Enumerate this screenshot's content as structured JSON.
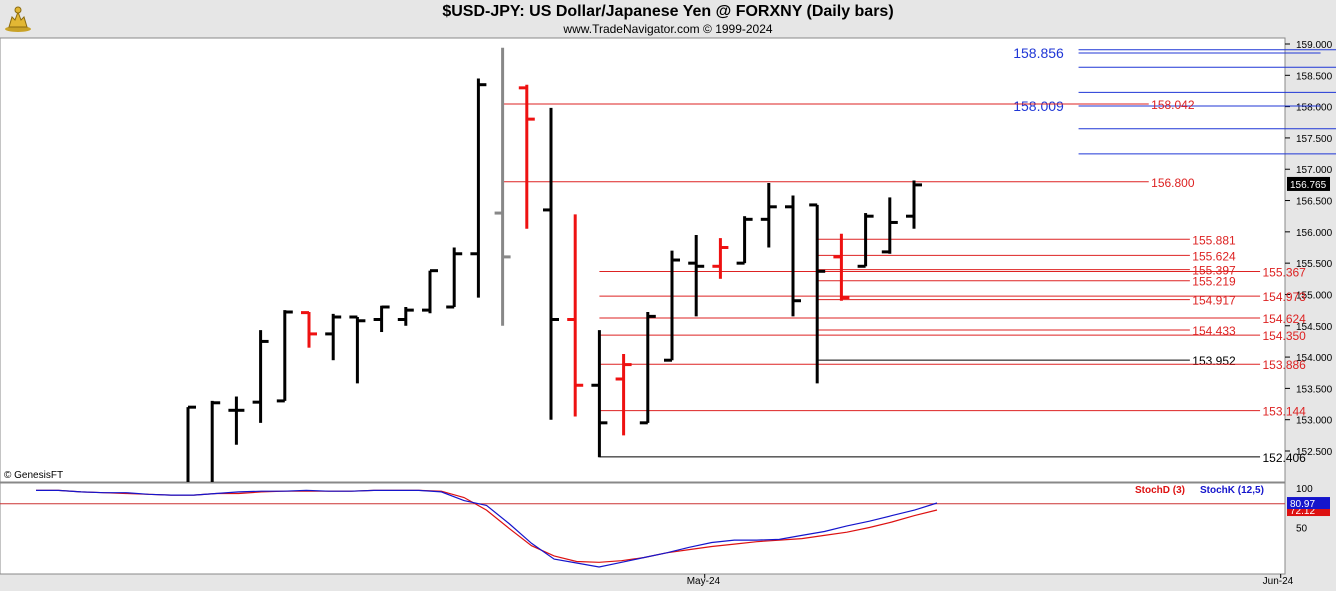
{
  "header": {
    "title": "$USD-JPY:  US Dollar/Japanese Yen @ FORXNY  (Daily bars)",
    "subtitle": "www.TradeNavigator.com © 1999-2024",
    "logo_icon": "gold-bull-logo-icon"
  },
  "chart_data": [
    {
      "type": "ohlc",
      "copyright": "© GenesisFT",
      "ylim": [
        152.0,
        159.1
      ],
      "y_ticks": [
        "159.000",
        "158.500",
        "158.000",
        "157.500",
        "157.000",
        "156.500",
        "156.000",
        "155.500",
        "155.000",
        "154.500",
        "154.000",
        "153.500",
        "153.000",
        "152.500"
      ],
      "last_price": "156.765",
      "x_ticks": [
        {
          "label": "May-24",
          "bar": 21.6
        },
        {
          "label": "Jun-24",
          "bar": 45.4
        }
      ],
      "colors": {
        "up": "#000000",
        "down": "#000000",
        "highlight": "#ee1111",
        "gray": "#888888",
        "red_level": "#dd2222",
        "blue_level": "#1f36d6",
        "black_level": "#000000"
      },
      "bars": [
        {
          "o": null,
          "h": 153.2,
          "l": 152.0,
          "c": 153.2,
          "color": "black"
        },
        {
          "o": null,
          "h": 153.3,
          "l": 152.0,
          "c": 153.27,
          "color": "black"
        },
        {
          "o": 153.15,
          "h": 153.37,
          "l": 152.6,
          "c": 153.15,
          "color": "black"
        },
        {
          "o": 153.28,
          "h": 154.43,
          "l": 152.95,
          "c": 154.25,
          "color": "black"
        },
        {
          "o": 153.3,
          "h": 154.75,
          "l": 153.3,
          "c": 154.72,
          "color": "black"
        },
        {
          "o": 154.71,
          "h": 154.72,
          "l": 154.15,
          "c": 154.37,
          "color": "red"
        },
        {
          "o": 154.37,
          "h": 154.69,
          "l": 153.95,
          "c": 154.64,
          "color": "black"
        },
        {
          "o": 154.64,
          "h": 154.64,
          "l": 153.58,
          "c": 154.58,
          "color": "black"
        },
        {
          "o": 154.6,
          "h": 154.82,
          "l": 154.4,
          "c": 154.8,
          "color": "black"
        },
        {
          "o": 154.6,
          "h": 154.8,
          "l": 154.5,
          "c": 154.75,
          "color": "black"
        },
        {
          "o": 154.75,
          "h": 155.38,
          "l": 154.7,
          "c": 155.38,
          "color": "black"
        },
        {
          "o": 154.8,
          "h": 155.75,
          "l": 154.8,
          "c": 155.65,
          "color": "black"
        },
        {
          "o": 155.65,
          "h": 158.45,
          "l": 154.95,
          "c": 158.35,
          "color": "black"
        },
        {
          "o": 156.3,
          "h": 158.94,
          "l": 154.5,
          "c": 155.6,
          "color": "gray"
        },
        {
          "o": 158.3,
          "h": 158.35,
          "l": 156.05,
          "c": 157.8,
          "color": "red"
        },
        {
          "o": 156.35,
          "h": 157.98,
          "l": 153.0,
          "c": 154.6,
          "color": "black"
        },
        {
          "o": 154.6,
          "h": 156.28,
          "l": 153.05,
          "c": 153.55,
          "color": "red"
        },
        {
          "o": 153.55,
          "h": 154.43,
          "l": 152.4,
          "c": 152.95,
          "color": "black"
        },
        {
          "o": 153.65,
          "h": 154.05,
          "l": 152.75,
          "c": 153.88,
          "color": "red"
        },
        {
          "o": 152.95,
          "h": 154.72,
          "l": 152.95,
          "c": 154.65,
          "color": "black"
        },
        {
          "o": 153.95,
          "h": 155.7,
          "l": 153.95,
          "c": 155.55,
          "color": "black"
        },
        {
          "o": 155.5,
          "h": 155.95,
          "l": 154.65,
          "c": 155.45,
          "color": "black"
        },
        {
          "o": 155.45,
          "h": 155.9,
          "l": 155.25,
          "c": 155.75,
          "color": "red"
        },
        {
          "o": 155.5,
          "h": 156.25,
          "l": 155.5,
          "c": 156.2,
          "color": "black"
        },
        {
          "o": 156.2,
          "h": 156.78,
          "l": 155.75,
          "c": 156.4,
          "color": "black"
        },
        {
          "o": 156.4,
          "h": 156.58,
          "l": 154.65,
          "c": 154.9,
          "color": "black"
        },
        {
          "o": 156.43,
          "h": 156.43,
          "l": 153.58,
          "c": 155.37,
          "color": "black"
        },
        {
          "o": 155.6,
          "h": 155.97,
          "l": 154.9,
          "c": 154.95,
          "color": "red"
        },
        {
          "o": 155.45,
          "h": 156.3,
          "l": 155.45,
          "c": 156.25,
          "color": "black"
        },
        {
          "o": 155.68,
          "h": 156.55,
          "l": 155.65,
          "c": 156.15,
          "color": "black"
        },
        {
          "o": 156.25,
          "h": 156.82,
          "l": 156.05,
          "c": 156.75,
          "color": "black"
        }
      ],
      "levels": [
        {
          "value": 158.909,
          "label": "158.909",
          "color": "blue",
          "x0": 36.8,
          "x1": 50.4,
          "lx": 50.5
        },
        {
          "value": 158.856,
          "label": "158.856",
          "color": "blue",
          "x0": 36.8,
          "x1": 46.8,
          "lx": 34.1
        },
        {
          "value": 158.628,
          "label": "158.628",
          "color": "blue",
          "x0": 36.8,
          "x1": 50.4,
          "lx": 50.5
        },
        {
          "value": 158.228,
          "label": "158.228",
          "color": "blue",
          "x0": 36.8,
          "x1": 50.4,
          "lx": 50.5
        },
        {
          "value": 158.009,
          "label": "158.009",
          "color": "blue",
          "x0": 36.8,
          "x1": 46.8,
          "lx": 34.1
        },
        {
          "value": 158.042,
          "label": "158.042",
          "color": "red",
          "x0": 13.0,
          "x1": 39.7,
          "lx": 39.8
        },
        {
          "value": 157.646,
          "label": "157.646",
          "color": "blue",
          "x0": 36.8,
          "x1": 50.4,
          "lx": 50.5
        },
        {
          "value": 157.246,
          "label": "157.246",
          "color": "blue",
          "x0": 36.8,
          "x1": 50.4,
          "lx": 50.5
        },
        {
          "value": 156.8,
          "label": "156.800",
          "color": "red",
          "x0": 13.0,
          "x1": 39.7,
          "lx": 39.8
        },
        {
          "value": 155.881,
          "label": "155.881",
          "color": "red",
          "x0": 26.0,
          "x1": 41.4,
          "lx": 41.5
        },
        {
          "value": 155.624,
          "label": "155.624",
          "color": "red",
          "x0": 26.0,
          "x1": 41.4,
          "lx": 41.5
        },
        {
          "value": 155.397,
          "label": "155.397",
          "color": "red",
          "x0": 26.0,
          "x1": 41.4,
          "lx": 41.5
        },
        {
          "value": 155.367,
          "label": "155.367",
          "color": "red",
          "x0": 17.0,
          "x1": 44.3,
          "lx": 44.4
        },
        {
          "value": 155.219,
          "label": "155.219",
          "color": "red",
          "x0": 26.0,
          "x1": 41.4,
          "lx": 41.5
        },
        {
          "value": 154.973,
          "label": "154.973",
          "color": "red",
          "x0": 17.0,
          "x1": 44.3,
          "lx": 44.4
        },
        {
          "value": 154.917,
          "label": "154.917",
          "color": "red",
          "x0": 26.0,
          "x1": 41.4,
          "lx": 41.5
        },
        {
          "value": 154.624,
          "label": "154.624",
          "color": "red",
          "x0": 17.0,
          "x1": 44.3,
          "lx": 44.4
        },
        {
          "value": 154.433,
          "label": "154.433",
          "color": "red",
          "x0": 26.0,
          "x1": 41.4,
          "lx": 41.5
        },
        {
          "value": 154.35,
          "label": "154.350",
          "color": "red",
          "x0": 17.0,
          "x1": 44.3,
          "lx": 44.4
        },
        {
          "value": 153.952,
          "label": "153.952",
          "color": "black",
          "x0": 26.0,
          "x1": 41.4,
          "lx": 41.5
        },
        {
          "value": 153.886,
          "label": "153.886",
          "color": "red",
          "x0": 17.0,
          "x1": 44.3,
          "lx": 44.4
        },
        {
          "value": 153.144,
          "label": "153.144",
          "color": "red",
          "x0": 17.0,
          "x1": 44.3,
          "lx": 44.4
        },
        {
          "value": 152.406,
          "label": "152.406",
          "color": "black",
          "x0": 17.0,
          "x1": 44.3,
          "lx": 44.4
        }
      ]
    },
    {
      "type": "line",
      "ylim": [
        0,
        100
      ],
      "y_ticks": [
        "100",
        "50"
      ],
      "reference_line": 80,
      "series": [
        {
          "name": "StochD (3)",
          "color": "#dd1111",
          "last_label": "72.12",
          "values": [
            97,
            97,
            95,
            94,
            93,
            92,
            91,
            91,
            93,
            93,
            95,
            96,
            96,
            96,
            96,
            97,
            97,
            97,
            96,
            88,
            72,
            49,
            27,
            14,
            7,
            6,
            8,
            12,
            18,
            22,
            26,
            29,
            32,
            34,
            36,
            40,
            44,
            50,
            57,
            65,
            72.12
          ]
        },
        {
          "name": "StochK (12,5)",
          "color": "#1515cc",
          "last_label": "80.97",
          "values": [
            97,
            97,
            95,
            94,
            94,
            92,
            91,
            91,
            93,
            95,
            96,
            96,
            97,
            96,
            96,
            97,
            97,
            97,
            95,
            84,
            78,
            55,
            30,
            10,
            5,
            0,
            6,
            12,
            18,
            25,
            31,
            34,
            34,
            35,
            40,
            45,
            52,
            58,
            65,
            72,
            80.97
          ]
        }
      ]
    }
  ]
}
